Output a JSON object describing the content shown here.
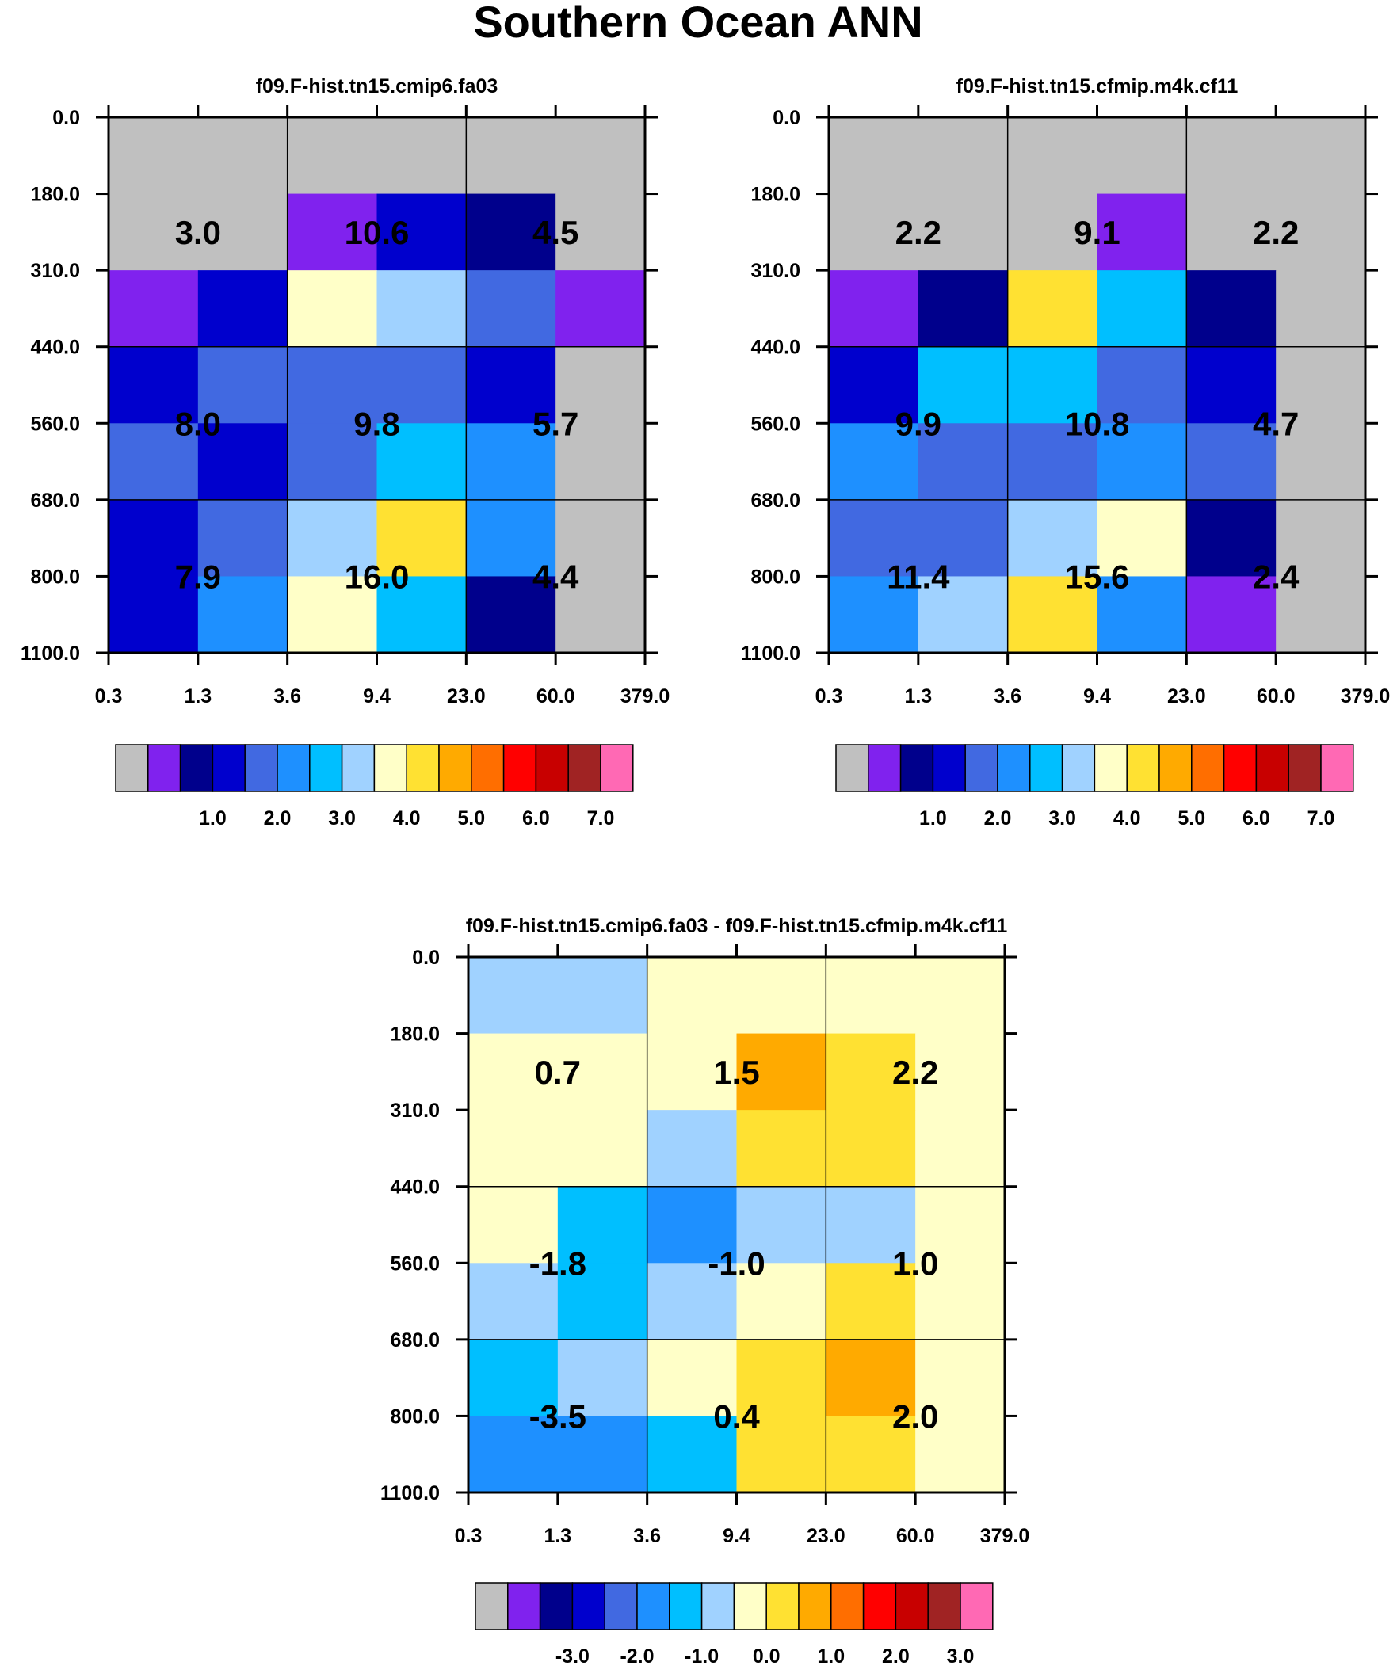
{
  "figure_title": "Southern Ocean ANN",
  "chart_data": [
    {
      "type": "heatmap",
      "title": "f09.F-hist.tn15.cmip6.fa03",
      "x_ticks": [
        "0.3",
        "1.3",
        "3.6",
        "9.4",
        "23.0",
        "60.0",
        "379.0"
      ],
      "y_ticks": [
        "0.0",
        "180.0",
        "310.0",
        "440.0",
        "560.0",
        "680.0",
        "800.0",
        "1100.0"
      ],
      "fine_grid_color_index": [
        [
          0,
          0,
          0,
          0,
          0,
          0
        ],
        [
          0,
          0,
          1,
          3,
          2,
          0
        ],
        [
          1,
          3,
          8,
          7,
          4,
          1
        ],
        [
          3,
          4,
          4,
          4,
          3,
          0
        ],
        [
          4,
          3,
          4,
          6,
          5,
          0
        ],
        [
          3,
          4,
          7,
          9,
          5,
          0
        ],
        [
          3,
          5,
          8,
          6,
          2,
          0
        ]
      ],
      "cell_values": [
        [
          "3.0",
          "10.6",
          "4.5"
        ],
        [
          "8.0",
          "9.8",
          "5.7"
        ],
        [
          "7.9",
          "16.0",
          "4.4"
        ]
      ],
      "colorbar": {
        "colors": [
          "#c0c0c0",
          "#8022ee",
          "#00008c",
          "#0000cd",
          "#4169e1",
          "#1e90ff",
          "#00bfff",
          "#a0d2ff",
          "#ffffc8",
          "#ffe132",
          "#ffaa00",
          "#ff6e00",
          "#ff0000",
          "#c80000",
          "#a02323",
          "#ff69b4"
        ],
        "labels": [
          "1.0",
          "2.0",
          "3.0",
          "4.0",
          "5.0",
          "6.0",
          "7.0"
        ]
      }
    },
    {
      "type": "heatmap",
      "title": "f09.F-hist.tn15.cfmip.m4k.cf11",
      "x_ticks": [
        "0.3",
        "1.3",
        "3.6",
        "9.4",
        "23.0",
        "60.0",
        "379.0"
      ],
      "y_ticks": [
        "0.0",
        "180.0",
        "310.0",
        "440.0",
        "560.0",
        "680.0",
        "800.0",
        "1100.0"
      ],
      "fine_grid_color_index": [
        [
          0,
          0,
          0,
          0,
          0,
          0
        ],
        [
          0,
          0,
          0,
          1,
          0,
          0
        ],
        [
          1,
          2,
          9,
          6,
          2,
          0
        ],
        [
          3,
          6,
          6,
          4,
          3,
          0
        ],
        [
          5,
          4,
          4,
          5,
          4,
          0
        ],
        [
          4,
          4,
          7,
          8,
          2,
          0
        ],
        [
          5,
          7,
          9,
          5,
          1,
          0
        ]
      ],
      "cell_values": [
        [
          "2.2",
          "9.1",
          "2.2"
        ],
        [
          "9.9",
          "10.8",
          "4.7"
        ],
        [
          "11.4",
          "15.6",
          "2.4"
        ]
      ],
      "colorbar": {
        "colors": [
          "#c0c0c0",
          "#8022ee",
          "#00008c",
          "#0000cd",
          "#4169e1",
          "#1e90ff",
          "#00bfff",
          "#a0d2ff",
          "#ffffc8",
          "#ffe132",
          "#ffaa00",
          "#ff6e00",
          "#ff0000",
          "#c80000",
          "#a02323",
          "#ff69b4"
        ],
        "labels": [
          "1.0",
          "2.0",
          "3.0",
          "4.0",
          "5.0",
          "6.0",
          "7.0"
        ]
      }
    },
    {
      "type": "heatmap",
      "title": "f09.F-hist.tn15.cmip6.fa03 - f09.F-hist.tn15.cfmip.m4k.cf11",
      "x_ticks": [
        "0.3",
        "1.3",
        "3.6",
        "9.4",
        "23.0",
        "60.0",
        "379.0"
      ],
      "y_ticks": [
        "0.0",
        "180.0",
        "310.0",
        "440.0",
        "560.0",
        "680.0",
        "800.0",
        "1100.0"
      ],
      "fine_grid_color_index": [
        [
          7,
          7,
          8,
          8,
          8,
          8
        ],
        [
          8,
          8,
          8,
          10,
          9,
          8
        ],
        [
          8,
          8,
          7,
          9,
          9,
          8
        ],
        [
          8,
          6,
          5,
          7,
          7,
          8
        ],
        [
          7,
          6,
          7,
          8,
          9,
          8
        ],
        [
          6,
          7,
          8,
          9,
          10,
          8
        ],
        [
          5,
          5,
          6,
          9,
          9,
          8
        ]
      ],
      "cell_values": [
        [
          "0.7",
          "1.5",
          "2.2"
        ],
        [
          "-1.8",
          "-1.0",
          "1.0"
        ],
        [
          "-3.5",
          "0.4",
          "2.0"
        ]
      ],
      "colorbar": {
        "colors": [
          "#c0c0c0",
          "#8022ee",
          "#00008c",
          "#0000cd",
          "#4169e1",
          "#1e90ff",
          "#00bfff",
          "#a0d2ff",
          "#ffffc8",
          "#ffe132",
          "#ffaa00",
          "#ff6e00",
          "#ff0000",
          "#c80000",
          "#a02323",
          "#ff69b4"
        ],
        "labels": [
          "-3.0",
          "-2.0",
          "-1.0",
          "0.0",
          "1.0",
          "2.0",
          "3.0"
        ]
      }
    }
  ]
}
